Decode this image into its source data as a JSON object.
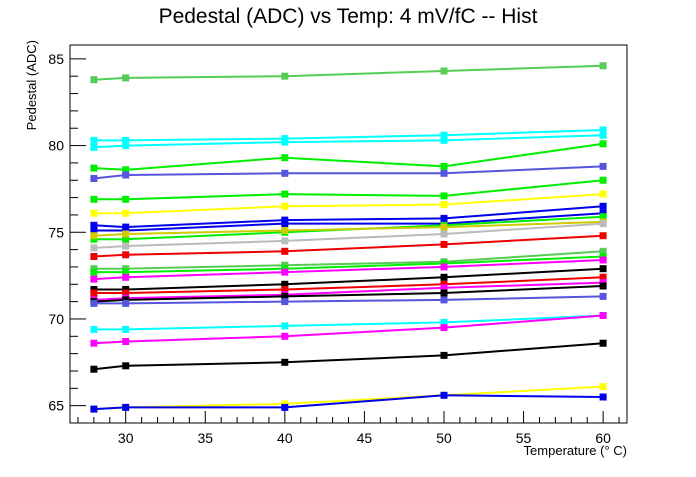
{
  "chart_data": {
    "type": "line",
    "title": "Pedestal (ADC) vs Temp: 4 mV/fC -- Hist",
    "xlabel": "Temperature (° C)",
    "ylabel": "Pedestal (ADC)",
    "xlim": [
      26.5,
      61.5
    ],
    "ylim": [
      64.0,
      85.8
    ],
    "x_ticks": [
      30,
      35,
      40,
      45,
      50,
      55,
      60
    ],
    "y_ticks": [
      65,
      70,
      75,
      80,
      85
    ],
    "x": [
      28,
      30,
      40,
      50,
      60
    ],
    "grid": false,
    "legend": "none",
    "series": [
      {
        "color": "#55cc55",
        "values": [
          83.8,
          83.9,
          84.0,
          84.3,
          84.6
        ]
      },
      {
        "color": "#00ffff",
        "values": [
          80.3,
          80.3,
          80.4,
          80.6,
          80.9
        ]
      },
      {
        "color": "#00ffff",
        "values": [
          79.9,
          80.0,
          80.2,
          80.3,
          80.6
        ]
      },
      {
        "color": "#00ee00",
        "values": [
          78.7,
          78.6,
          79.3,
          78.8,
          80.1
        ]
      },
      {
        "color": "#5555dd",
        "values": [
          78.1,
          78.3,
          78.4,
          78.4,
          78.8
        ]
      },
      {
        "color": "#00ee00",
        "values": [
          76.9,
          76.9,
          77.2,
          77.1,
          78.0
        ]
      },
      {
        "color": "#ffff00",
        "values": [
          76.1,
          76.1,
          76.5,
          76.6,
          77.2
        ]
      },
      {
        "color": "#0000ee",
        "values": [
          75.4,
          75.3,
          75.7,
          75.8,
          76.5
        ]
      },
      {
        "color": "#0000ee",
        "values": [
          75.1,
          75.1,
          75.5,
          75.5,
          76.1
        ]
      },
      {
        "color": "#00ee00",
        "values": [
          74.6,
          74.6,
          75.0,
          75.4,
          75.9
        ]
      },
      {
        "color": "#cccc00",
        "values": [
          74.8,
          74.9,
          75.1,
          75.3,
          75.6
        ]
      },
      {
        "color": "#bbbbbb",
        "values": [
          74.1,
          74.2,
          74.5,
          74.9,
          75.5
        ]
      },
      {
        "color": "#ee0000",
        "values": [
          73.6,
          73.7,
          73.9,
          74.3,
          74.8
        ]
      },
      {
        "color": "#55cc55",
        "values": [
          72.9,
          72.9,
          73.1,
          73.3,
          73.9
        ]
      },
      {
        "color": "#00ee00",
        "values": [
          72.7,
          72.7,
          72.9,
          73.2,
          73.6
        ]
      },
      {
        "color": "#ff00ff",
        "values": [
          72.3,
          72.4,
          72.7,
          73.0,
          73.4
        ]
      },
      {
        "color": "#000000",
        "values": [
          71.7,
          71.7,
          72.0,
          72.4,
          72.9
        ]
      },
      {
        "color": "#ee0000",
        "values": [
          71.5,
          71.5,
          71.7,
          72.0,
          72.4
        ]
      },
      {
        "color": "#ff00ff",
        "values": [
          71.1,
          71.2,
          71.4,
          71.8,
          72.1
        ]
      },
      {
        "color": "#000000",
        "values": [
          71.0,
          71.1,
          71.3,
          71.5,
          71.9
        ]
      },
      {
        "color": "#5555dd",
        "values": [
          70.9,
          70.9,
          71.0,
          71.1,
          71.3
        ]
      },
      {
        "color": "#00ffff",
        "values": [
          69.4,
          69.4,
          69.6,
          69.8,
          70.2
        ]
      },
      {
        "color": "#ff00ff",
        "values": [
          68.6,
          68.7,
          69.0,
          69.5,
          70.2
        ]
      },
      {
        "color": "#000000",
        "values": [
          67.1,
          67.3,
          67.5,
          67.9,
          68.6
        ]
      },
      {
        "color": "#ffff00",
        "values": [
          64.8,
          64.9,
          65.1,
          65.6,
          66.1
        ]
      },
      {
        "color": "#0000ee",
        "values": [
          64.8,
          64.9,
          64.9,
          65.6,
          65.5
        ]
      }
    ]
  }
}
